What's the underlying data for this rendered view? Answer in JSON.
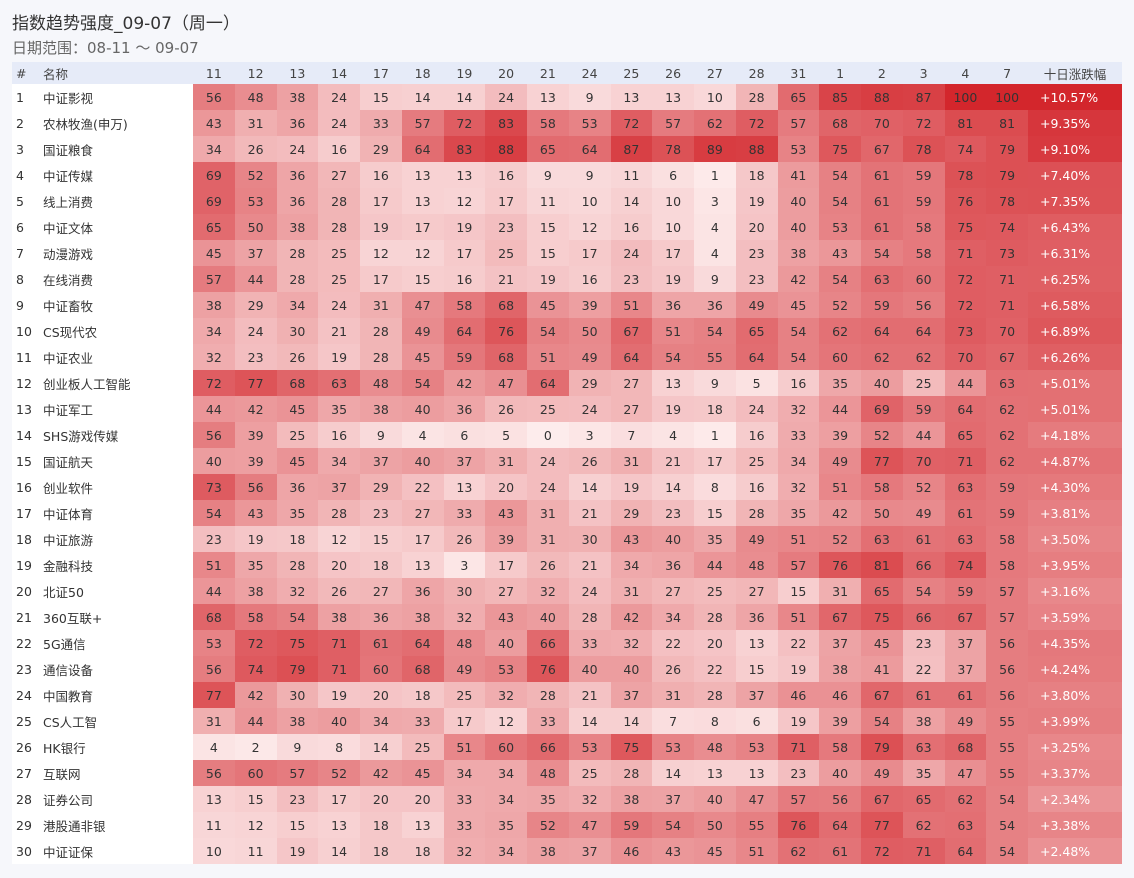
{
  "title": "指数趋势强度_09-07（周一）",
  "date_range": "日期范围：08-11 ～ 09-07",
  "table": {
    "header": {
      "rank": "#",
      "name": "名称",
      "dates": [
        "11",
        "12",
        "13",
        "14",
        "17",
        "18",
        "19",
        "20",
        "21",
        "24",
        "25",
        "26",
        "27",
        "28",
        "31",
        "1",
        "2",
        "3",
        "4",
        "7"
      ],
      "change": "十日涨跌幅"
    },
    "rows": [
      {
        "rank": 1,
        "name": "中证影视",
        "values": [
          56,
          48,
          38,
          24,
          15,
          14,
          14,
          24,
          13,
          9,
          13,
          13,
          10,
          28,
          65,
          85,
          88,
          87,
          100,
          100
        ],
        "change": "+10.57%"
      },
      {
        "rank": 2,
        "name": "农林牧渔(申万)",
        "values": [
          43,
          31,
          36,
          24,
          33,
          57,
          72,
          83,
          58,
          53,
          72,
          57,
          62,
          72,
          57,
          68,
          70,
          72,
          81,
          81
        ],
        "change": "+9.35%"
      },
      {
        "rank": 3,
        "name": "国证粮食",
        "values": [
          34,
          26,
          24,
          16,
          29,
          64,
          83,
          88,
          65,
          64,
          87,
          78,
          89,
          88,
          53,
          75,
          67,
          78,
          74,
          79
        ],
        "change": "+9.10%"
      },
      {
        "rank": 4,
        "name": "中证传媒",
        "values": [
          69,
          52,
          36,
          27,
          16,
          13,
          13,
          16,
          9,
          9,
          11,
          6,
          1,
          18,
          41,
          54,
          61,
          59,
          78,
          79
        ],
        "change": "+7.40%"
      },
      {
        "rank": 5,
        "name": "线上消费",
        "values": [
          69,
          53,
          36,
          28,
          17,
          13,
          12,
          17,
          11,
          10,
          14,
          10,
          3,
          19,
          40,
          54,
          61,
          59,
          76,
          78
        ],
        "change": "+7.35%"
      },
      {
        "rank": 6,
        "name": "中证文体",
        "values": [
          65,
          50,
          38,
          28,
          19,
          17,
          19,
          23,
          15,
          12,
          16,
          10,
          4,
          20,
          40,
          53,
          61,
          58,
          75,
          74
        ],
        "change": "+6.43%"
      },
      {
        "rank": 7,
        "name": "动漫游戏",
        "values": [
          45,
          37,
          28,
          25,
          12,
          12,
          17,
          25,
          15,
          17,
          24,
          17,
          4,
          23,
          38,
          43,
          54,
          58,
          71,
          73
        ],
        "change": "+6.31%"
      },
      {
        "rank": 8,
        "name": "在线消费",
        "values": [
          57,
          44,
          28,
          25,
          17,
          15,
          16,
          21,
          19,
          16,
          23,
          19,
          9,
          23,
          42,
          54,
          63,
          60,
          72,
          71
        ],
        "change": "+6.25%"
      },
      {
        "rank": 9,
        "name": "中证畜牧",
        "values": [
          38,
          29,
          34,
          24,
          31,
          47,
          58,
          68,
          45,
          39,
          51,
          36,
          36,
          49,
          45,
          52,
          59,
          56,
          72,
          71
        ],
        "change": "+6.58%"
      },
      {
        "rank": 10,
        "name": "CS现代农",
        "values": [
          34,
          24,
          30,
          21,
          28,
          49,
          64,
          76,
          54,
          50,
          67,
          51,
          54,
          65,
          54,
          62,
          64,
          64,
          73,
          70
        ],
        "change": "+6.89%"
      },
      {
        "rank": 11,
        "name": "中证农业",
        "values": [
          32,
          23,
          26,
          19,
          28,
          45,
          59,
          68,
          51,
          49,
          64,
          54,
          55,
          64,
          54,
          60,
          62,
          62,
          70,
          67
        ],
        "change": "+6.26%"
      },
      {
        "rank": 12,
        "name": "创业板人工智能",
        "values": [
          72,
          77,
          68,
          63,
          48,
          54,
          42,
          47,
          64,
          29,
          27,
          13,
          9,
          5,
          16,
          35,
          40,
          25,
          44,
          63
        ],
        "change": "+5.01%"
      },
      {
        "rank": 13,
        "name": "中证军工",
        "values": [
          44,
          42,
          45,
          35,
          38,
          40,
          36,
          26,
          25,
          24,
          27,
          19,
          18,
          24,
          32,
          44,
          69,
          59,
          64,
          62
        ],
        "change": "+5.01%"
      },
      {
        "rank": 14,
        "name": "SHS游戏传媒",
        "values": [
          56,
          39,
          25,
          16,
          9,
          4,
          6,
          5,
          0,
          3,
          7,
          4,
          1,
          16,
          33,
          39,
          52,
          44,
          65,
          62
        ],
        "change": "+4.18%"
      },
      {
        "rank": 15,
        "name": "国证航天",
        "values": [
          40,
          39,
          45,
          34,
          37,
          40,
          37,
          31,
          24,
          26,
          31,
          21,
          17,
          25,
          34,
          49,
          77,
          70,
          71,
          62
        ],
        "change": "+4.87%"
      },
      {
        "rank": 16,
        "name": "创业软件",
        "values": [
          73,
          56,
          36,
          37,
          29,
          22,
          13,
          20,
          24,
          14,
          19,
          14,
          8,
          16,
          32,
          51,
          58,
          52,
          63,
          59
        ],
        "change": "+4.30%"
      },
      {
        "rank": 17,
        "name": "中证体育",
        "values": [
          54,
          43,
          35,
          28,
          23,
          27,
          33,
          43,
          31,
          21,
          29,
          23,
          15,
          28,
          35,
          42,
          50,
          49,
          61,
          59
        ],
        "change": "+3.81%"
      },
      {
        "rank": 18,
        "name": "中证旅游",
        "values": [
          23,
          19,
          18,
          12,
          15,
          17,
          26,
          39,
          31,
          30,
          43,
          40,
          35,
          49,
          51,
          52,
          63,
          61,
          63,
          58
        ],
        "change": "+3.50%"
      },
      {
        "rank": 19,
        "name": "金融科技",
        "values": [
          51,
          35,
          28,
          20,
          18,
          13,
          3,
          17,
          26,
          21,
          34,
          36,
          44,
          48,
          57,
          76,
          81,
          66,
          74,
          58
        ],
        "change": "+3.95%"
      },
      {
        "rank": 20,
        "name": "北证50",
        "values": [
          44,
          38,
          32,
          26,
          27,
          36,
          30,
          27,
          32,
          24,
          31,
          27,
          25,
          27,
          15,
          31,
          65,
          54,
          59,
          57
        ],
        "change": "+3.16%"
      },
      {
        "rank": 21,
        "name": "360互联+",
        "values": [
          68,
          58,
          54,
          38,
          36,
          38,
          32,
          43,
          40,
          28,
          42,
          34,
          28,
          36,
          51,
          67,
          75,
          66,
          67,
          57
        ],
        "change": "+3.59%"
      },
      {
        "rank": 22,
        "name": "5G通信",
        "values": [
          53,
          72,
          75,
          71,
          61,
          64,
          48,
          40,
          66,
          33,
          32,
          22,
          20,
          13,
          22,
          37,
          45,
          23,
          37,
          56
        ],
        "change": "+4.35%"
      },
      {
        "rank": 23,
        "name": "通信设备",
        "values": [
          56,
          74,
          79,
          71,
          60,
          68,
          49,
          53,
          76,
          40,
          40,
          26,
          22,
          15,
          19,
          38,
          41,
          22,
          37,
          56
        ],
        "change": "+4.24%"
      },
      {
        "rank": 24,
        "name": "中国教育",
        "values": [
          77,
          42,
          30,
          19,
          20,
          18,
          25,
          32,
          28,
          21,
          37,
          31,
          28,
          37,
          46,
          46,
          67,
          61,
          61,
          56
        ],
        "change": "+3.80%"
      },
      {
        "rank": 25,
        "name": "CS人工智",
        "values": [
          31,
          44,
          38,
          40,
          34,
          33,
          17,
          12,
          33,
          14,
          14,
          7,
          8,
          6,
          19,
          39,
          54,
          38,
          49,
          55
        ],
        "change": "+3.99%"
      },
      {
        "rank": 26,
        "name": "HK银行",
        "values": [
          4,
          2,
          9,
          8,
          14,
          25,
          51,
          60,
          66,
          53,
          75,
          53,
          48,
          53,
          71,
          58,
          79,
          63,
          68,
          55
        ],
        "change": "+3.25%"
      },
      {
        "rank": 27,
        "name": "互联网",
        "values": [
          56,
          60,
          57,
          52,
          42,
          45,
          34,
          34,
          48,
          25,
          28,
          14,
          13,
          13,
          23,
          40,
          49,
          35,
          47,
          55
        ],
        "change": "+3.37%"
      },
      {
        "rank": 28,
        "name": "证券公司",
        "values": [
          13,
          15,
          23,
          17,
          20,
          20,
          33,
          34,
          35,
          32,
          38,
          37,
          40,
          47,
          57,
          56,
          67,
          65,
          62,
          54
        ],
        "change": "+2.34%"
      },
      {
        "rank": 29,
        "name": "港股通非银",
        "values": [
          11,
          12,
          15,
          13,
          18,
          13,
          33,
          35,
          52,
          47,
          59,
          54,
          50,
          55,
          76,
          64,
          77,
          62,
          63,
          54
        ],
        "change": "+3.38%"
      },
      {
        "rank": 30,
        "name": "中证证保",
        "values": [
          10,
          11,
          19,
          14,
          18,
          18,
          32,
          34,
          38,
          37,
          46,
          43,
          45,
          51,
          62,
          61,
          72,
          71,
          64,
          54
        ],
        "change": "+2.48%"
      }
    ]
  }
}
